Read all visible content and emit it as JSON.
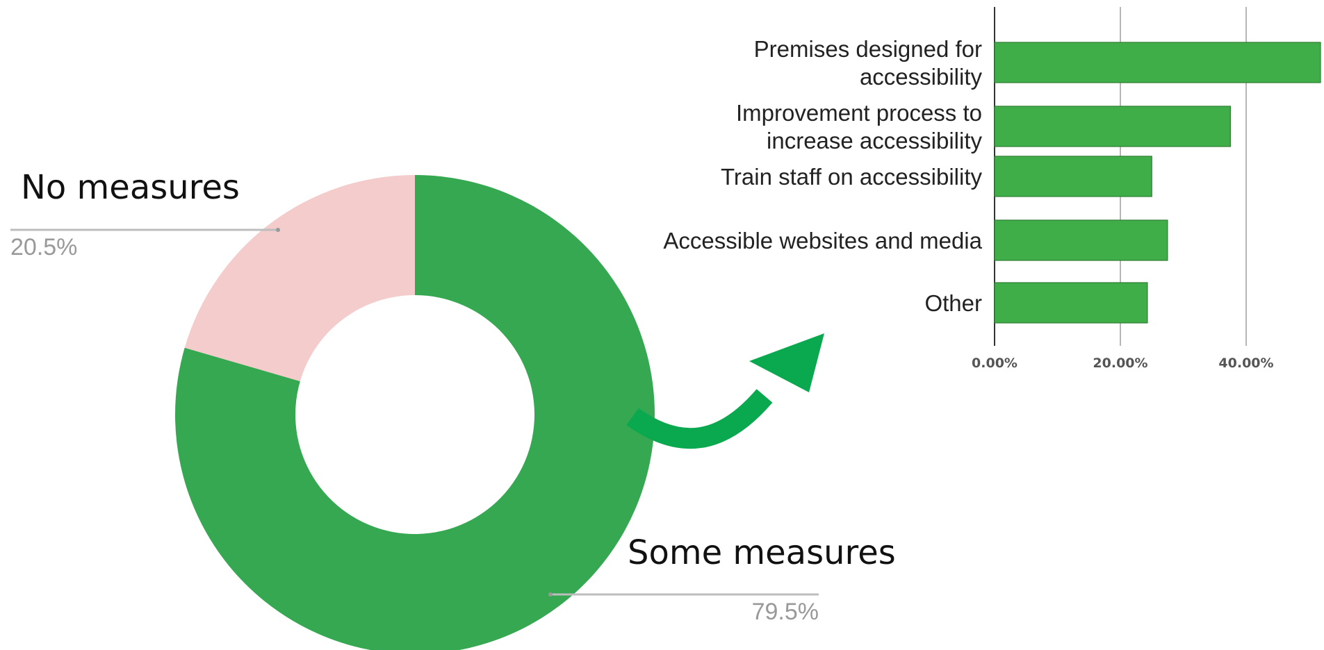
{
  "chart_data": [
    {
      "type": "pie",
      "donut": true,
      "categories": [
        "No measures",
        "Some measures"
      ],
      "values": [
        20.5,
        79.5
      ],
      "value_labels": [
        "20.5%",
        "79.5%"
      ],
      "colors": [
        "#f4cccc",
        "#36a852"
      ],
      "legend": "none"
    },
    {
      "type": "bar",
      "orientation": "horizontal",
      "categories": [
        [
          "Premises designed for",
          "accessibility"
        ],
        [
          "Improvement process to",
          "increase accessibility"
        ],
        [
          "Train staff on accessibility"
        ],
        [
          "Accessible websites and media"
        ],
        [
          "Other"
        ]
      ],
      "values": [
        53,
        37.5,
        25,
        27.5,
        24.3
      ],
      "xlim": [
        0,
        52.5
      ],
      "xticks": [
        0,
        20,
        40
      ],
      "xtick_labels": [
        "0.00%",
        "20.00%",
        "40.00%"
      ],
      "color": "#3fae49",
      "grid": true,
      "legend": "none"
    }
  ],
  "arrow": {
    "color": "#0aa84f",
    "direction": "up-right"
  }
}
